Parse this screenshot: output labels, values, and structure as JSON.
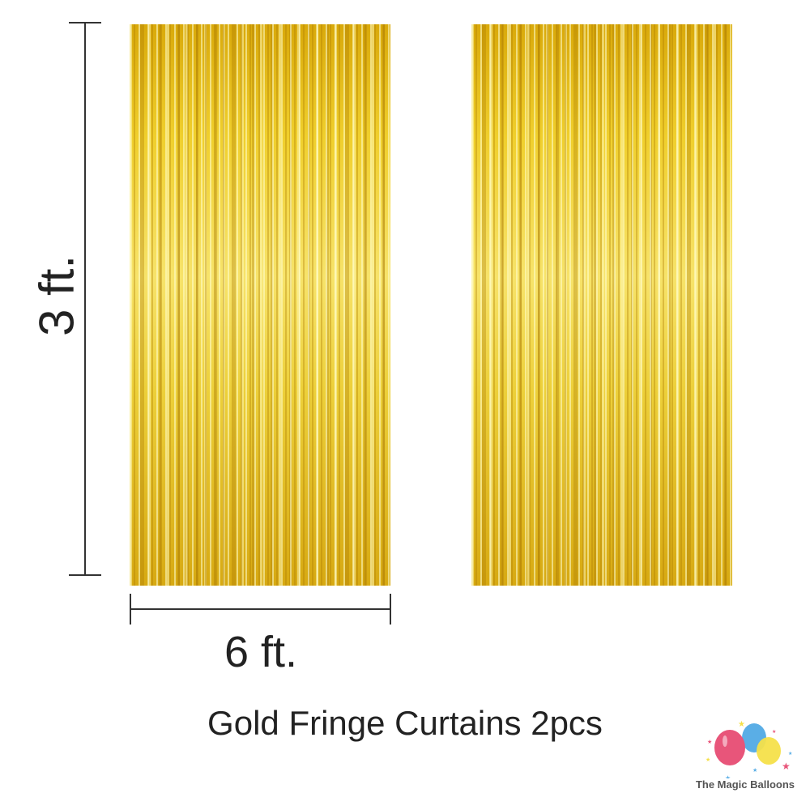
{
  "dimensions": {
    "height_label": "3 ft.",
    "width_label": "6 ft."
  },
  "caption": "Gold Fringe Curtains 2pcs",
  "logo": {
    "text": "The Magic Balloons",
    "colors": [
      "#e8557a",
      "#5aaee6",
      "#f5e04a"
    ]
  },
  "colors": {
    "curtain_gold": "#edd03a",
    "text": "#222222"
  }
}
